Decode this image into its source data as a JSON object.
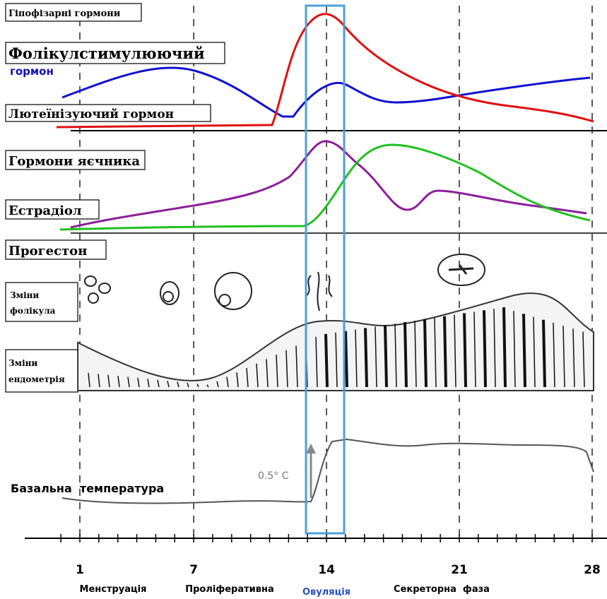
{
  "labels": {
    "pituitary": "Гіпофізарні гормони",
    "fsh": "Фолікулстимулюючий",
    "fsh_word": "гормон",
    "lh": "Лютеїнізуючий гормон",
    "ovarian": "Гормони яєчника",
    "estradiol": "Естрадіол",
    "progesterone": "Прогестон",
    "follicle": [
      "Зміни",
      "фолікула"
    ],
    "endometrium": [
      "Зміни",
      "ендометрія"
    ],
    "temperature": "Базальна  температура",
    "temp_rise": "0.5° C"
  },
  "days": [
    1,
    7,
    14,
    21,
    28
  ],
  "phases": [
    "Менструація",
    "Проліферативна",
    "Овуляція",
    "Секреторна  фаза"
  ]
}
